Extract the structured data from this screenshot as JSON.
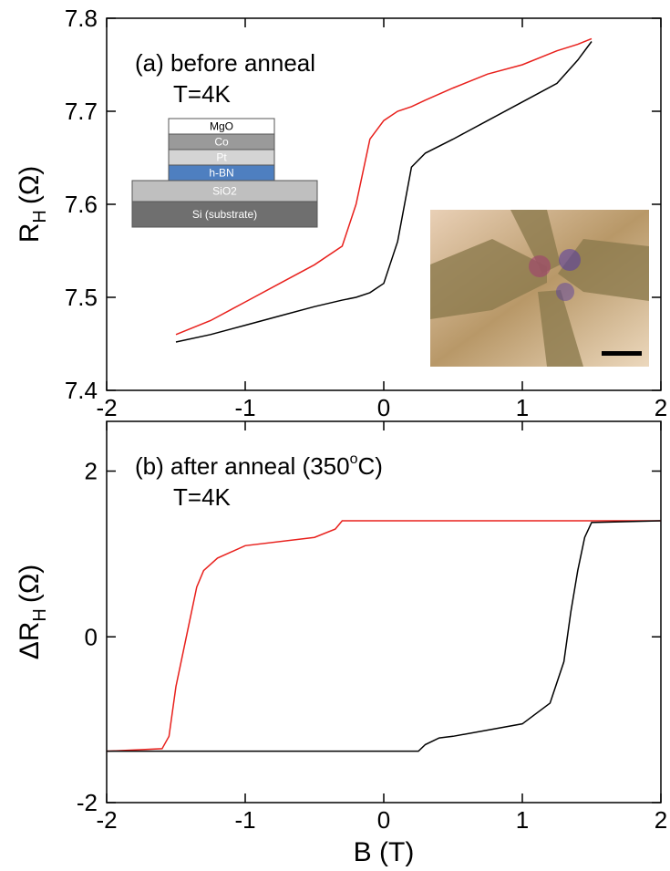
{
  "chart_data": [
    {
      "type": "line",
      "annotation": "(a) before anneal",
      "annotation2": "T=4K",
      "ylabel": "R",
      "ylabel_sub": "H",
      "ylabel_unit": "(Ω)",
      "x": [
        -1.5,
        -1.25,
        -1,
        -0.75,
        -0.5,
        -0.3,
        -0.2,
        -0.1,
        0,
        0.1,
        0.2,
        0.3,
        0.5,
        0.75,
        1,
        1.25,
        1.4,
        1.5
      ],
      "series": [
        {
          "color": "#e8201c",
          "values": [
            7.46,
            7.475,
            7.495,
            7.515,
            7.535,
            7.555,
            7.6,
            7.67,
            7.69,
            7.7,
            7.705,
            7.712,
            7.725,
            7.74,
            7.75,
            7.765,
            7.772,
            7.778
          ]
        },
        {
          "color": "#000000",
          "values": [
            7.452,
            7.46,
            7.47,
            7.48,
            7.49,
            7.497,
            7.5,
            7.505,
            7.515,
            7.56,
            7.64,
            7.655,
            7.67,
            7.69,
            7.71,
            7.73,
            7.755,
            7.775
          ]
        }
      ],
      "xlim": [
        -2,
        2
      ],
      "xticks": [
        -2,
        -1,
        0,
        1,
        2
      ],
      "ylim": [
        7.4,
        7.8
      ],
      "yticks": [
        7.4,
        7.5,
        7.6,
        7.7,
        7.8
      ],
      "inset_layers": [
        {
          "label": "MgO",
          "color": "#ffffff"
        },
        {
          "label": "Co",
          "color": "#9a9a9a"
        },
        {
          "label": "Pt",
          "color": "#d4d4d4"
        },
        {
          "label": "h-BN",
          "color": "#4e7fc0"
        },
        {
          "label": "SiO2",
          "color": "#bfbfbf"
        },
        {
          "label": "Si (substrate)",
          "color": "#6f6f6f"
        }
      ]
    },
    {
      "type": "line",
      "annotation": "(b) after anneal (350",
      "annotation_sup": "o",
      "annotation_end": "C)",
      "annotation2": "T=4K",
      "ylabel": "ΔR",
      "ylabel_sub": "H",
      "ylabel_unit": "(Ω)",
      "xlabel": "B (T)",
      "x": [
        -2,
        -1.6,
        -1.55,
        -1.5,
        -1.45,
        -1.4,
        -1.35,
        -1.3,
        -1.2,
        -1,
        -0.5,
        -0.35,
        -0.3,
        0,
        0.25,
        0.3,
        0.4,
        0.5,
        1,
        1.2,
        1.3,
        1.35,
        1.4,
        1.45,
        1.5,
        2
      ],
      "series": [
        {
          "color": "#e8201c",
          "values": [
            -1.38,
            -1.35,
            -1.2,
            -0.6,
            -0.2,
            0.2,
            0.6,
            0.8,
            0.95,
            1.1,
            1.2,
            1.3,
            1.4,
            1.4,
            1.4,
            1.4,
            1.4,
            1.4,
            1.4,
            1.4,
            1.4,
            1.4,
            1.4,
            1.4,
            1.4,
            1.4
          ]
        },
        {
          "color": "#000000",
          "values": [
            -1.38,
            -1.38,
            -1.38,
            -1.38,
            -1.38,
            -1.38,
            -1.38,
            -1.38,
            -1.38,
            -1.38,
            -1.38,
            -1.38,
            -1.38,
            -1.38,
            -1.38,
            -1.3,
            -1.22,
            -1.2,
            -1.05,
            -0.8,
            -0.3,
            0.3,
            0.8,
            1.2,
            1.38,
            1.4
          ]
        }
      ],
      "xlim": [
        -2,
        2
      ],
      "xticks": [
        -2,
        -1,
        0,
        1,
        2
      ],
      "ylim": [
        -2,
        2.6
      ],
      "yticks": [
        -2,
        0,
        2
      ]
    }
  ]
}
